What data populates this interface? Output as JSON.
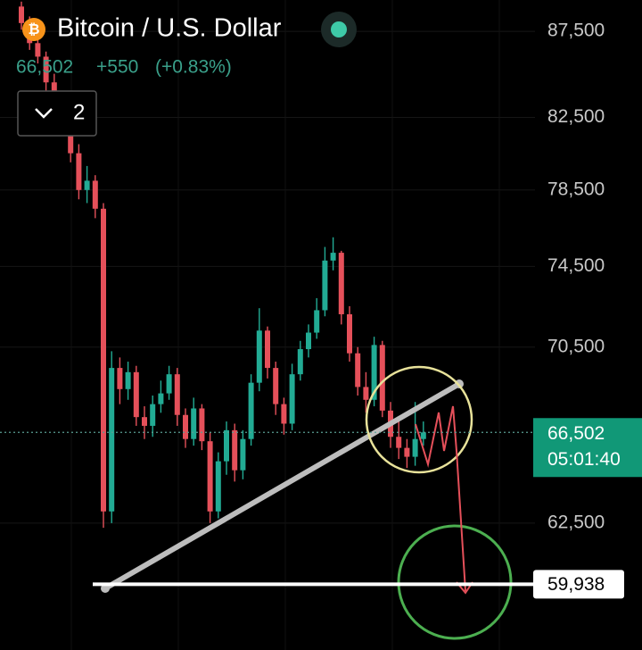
{
  "header": {
    "title": "Bitcoin / U.S. Dollar",
    "last": "66,502",
    "change": "+550",
    "change_pct": "(+0.83%)",
    "interval": "2"
  },
  "chart_data": {
    "type": "candlestick",
    "log_scale": true,
    "ylim": [
      57300,
      89400
    ],
    "yticks": [
      {
        "value": 87500,
        "label": "87,500"
      },
      {
        "value": 82500,
        "label": "82,500"
      },
      {
        "value": 78500,
        "label": "78,500"
      },
      {
        "value": 74500,
        "label": "74,500"
      },
      {
        "value": 70500,
        "label": "70,500"
      },
      {
        "value": 62500,
        "label": "62,500"
      }
    ],
    "grid": true,
    "up_color": "#22ab94",
    "down_color": "#e5505a",
    "open": [
      89000,
      88000,
      86800,
      86000,
      84500,
      83500,
      82000,
      80500,
      78500,
      79000,
      77500,
      63000,
      69500,
      68500,
      69300,
      67200,
      66800,
      67800,
      68300,
      69200,
      67300,
      66200,
      67600,
      66100,
      63000,
      65200,
      66600,
      64800,
      66200,
      68800,
      71300,
      69500,
      67800,
      66900,
      69200,
      70400,
      71200,
      72300,
      74800,
      75200,
      72100,
      70200,
      68600,
      68000,
      70600,
      67500,
      66300,
      65800,
      65400,
      66200
    ],
    "high": [
      89300,
      88400,
      87200,
      86300,
      85000,
      83900,
      82300,
      81000,
      79800,
      79300,
      77800,
      70300,
      70000,
      69800,
      69600,
      67700,
      68200,
      68900,
      69600,
      69500,
      67600,
      68100,
      67800,
      66500,
      65600,
      67000,
      66900,
      66600,
      69200,
      72400,
      71500,
      69800,
      68100,
      69700,
      70800,
      71600,
      72900,
      75500,
      76000,
      75300,
      72500,
      70500,
      69300,
      71000,
      70800,
      67900,
      67000,
      66200,
      67900,
      67000
    ],
    "low": [
      87600,
      86400,
      85600,
      84000,
      83000,
      81600,
      80000,
      78000,
      77800,
      77000,
      62300,
      62500,
      67800,
      68000,
      66800,
      66200,
      66300,
      67400,
      68000,
      66800,
      65800,
      65900,
      65700,
      62500,
      62700,
      64600,
      64300,
      64400,
      65900,
      68400,
      69000,
      67300,
      66400,
      66600,
      68900,
      70000,
      70900,
      72000,
      74300,
      71600,
      69800,
      68200,
      67400,
      67700,
      67200,
      65800,
      65300,
      64900,
      65000,
      65900
    ],
    "close": [
      88000,
      86800,
      86000,
      84500,
      83500,
      82000,
      80500,
      78500,
      79000,
      77500,
      63000,
      69500,
      68500,
      69300,
      67200,
      66800,
      67800,
      68300,
      69200,
      67300,
      66200,
      67600,
      66100,
      63000,
      65200,
      66600,
      64800,
      66200,
      68800,
      71300,
      69500,
      67800,
      66900,
      69200,
      70400,
      71200,
      72300,
      74800,
      75200,
      72100,
      70200,
      68600,
      68000,
      70600,
      67500,
      66300,
      65800,
      65400,
      66200,
      66502
    ],
    "last_price": {
      "value": 66502,
      "label": "66,502"
    },
    "countdown": "05:01:40",
    "support_level": {
      "value": 59938,
      "label": "59,938"
    }
  }
}
